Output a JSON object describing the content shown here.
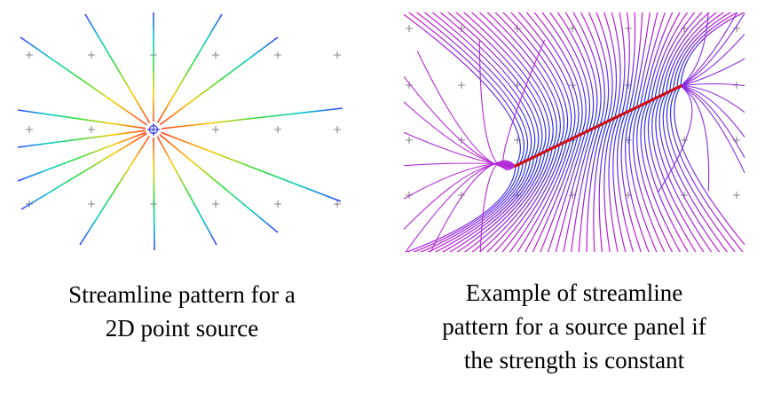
{
  "figures": [
    {
      "id": "point-source",
      "caption_lines": [
        "Streamline pattern for a",
        "2D point source"
      ]
    },
    {
      "id": "source-panel",
      "caption_lines": [
        "Example of streamline",
        "pattern for a source panel if",
        "the strength is constant"
      ]
    }
  ],
  "colors": {
    "source_marker": "#3a3aff",
    "panel_line": "#cc1111",
    "grid_cross": "#888888"
  }
}
